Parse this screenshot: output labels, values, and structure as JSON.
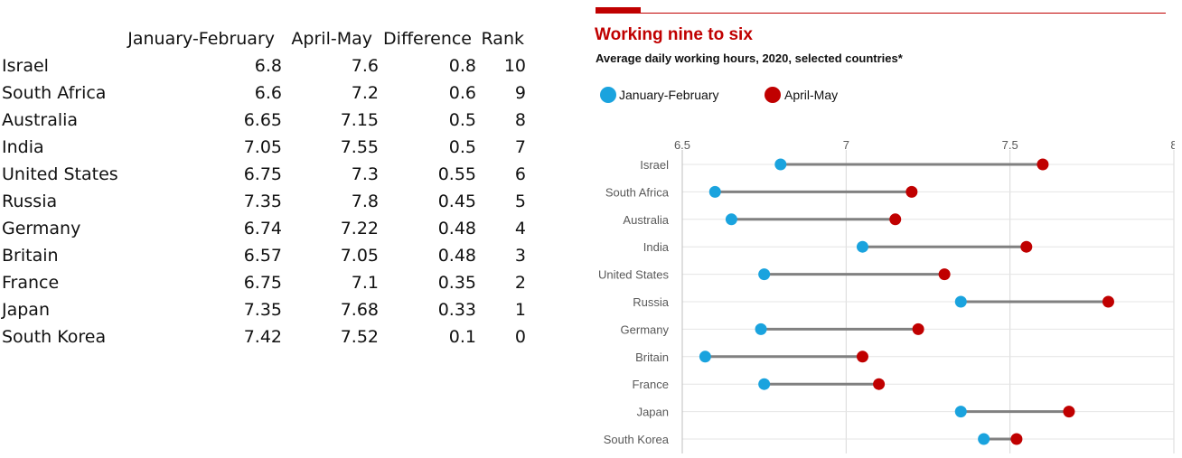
{
  "table": {
    "headers": [
      "",
      "January-February",
      "April-May",
      "Difference",
      "Rank"
    ],
    "rows": [
      [
        "Israel",
        "6.8",
        "7.6",
        "0.8",
        "10"
      ],
      [
        "South Africa",
        "6.6",
        "7.2",
        "0.6",
        "9"
      ],
      [
        "Australia",
        "6.65",
        "7.15",
        "0.5",
        "8"
      ],
      [
        "India",
        "7.05",
        "7.55",
        "0.5",
        "7"
      ],
      [
        "United States",
        "6.75",
        "7.3",
        "0.55",
        "6"
      ],
      [
        "Russia",
        "7.35",
        "7.8",
        "0.45",
        "5"
      ],
      [
        "Germany",
        "6.74",
        "7.22",
        "0.48",
        "4"
      ],
      [
        "Britain",
        "6.57",
        "7.05",
        "0.48",
        "3"
      ],
      [
        "France",
        "6.75",
        "7.1",
        "0.35",
        "2"
      ],
      [
        "Japan",
        "7.35",
        "7.68",
        "0.33",
        "1"
      ],
      [
        "South Korea",
        "7.42",
        "7.52",
        "0.1",
        "0"
      ]
    ]
  },
  "chart_data": {
    "type": "dumbbell",
    "title": "Working nine to six",
    "subtitle": "Average daily working hours, 2020, selected countries*",
    "categories": [
      "Israel",
      "South Africa",
      "Australia",
      "India",
      "United States",
      "Russia",
      "Germany",
      "Britain",
      "France",
      "Japan",
      "South Korea"
    ],
    "series": [
      {
        "name": "January-February",
        "color": "#1aa3de",
        "values": [
          6.8,
          6.6,
          6.65,
          7.05,
          6.75,
          7.35,
          6.74,
          6.57,
          6.75,
          7.35,
          7.42
        ]
      },
      {
        "name": "April-May",
        "color": "#c00000",
        "values": [
          7.6,
          7.2,
          7.15,
          7.55,
          7.3,
          7.8,
          7.22,
          7.05,
          7.1,
          7.68,
          7.52
        ]
      }
    ],
    "connector_color": "#808080",
    "xlim": [
      6.5,
      8
    ],
    "xticks": [
      "6.5",
      "7",
      "7.5",
      "8"
    ],
    "xtick_values": [
      6.5,
      7,
      7.5,
      8
    ],
    "x_axis_position": "top",
    "grid": true,
    "legend": "top-left"
  }
}
